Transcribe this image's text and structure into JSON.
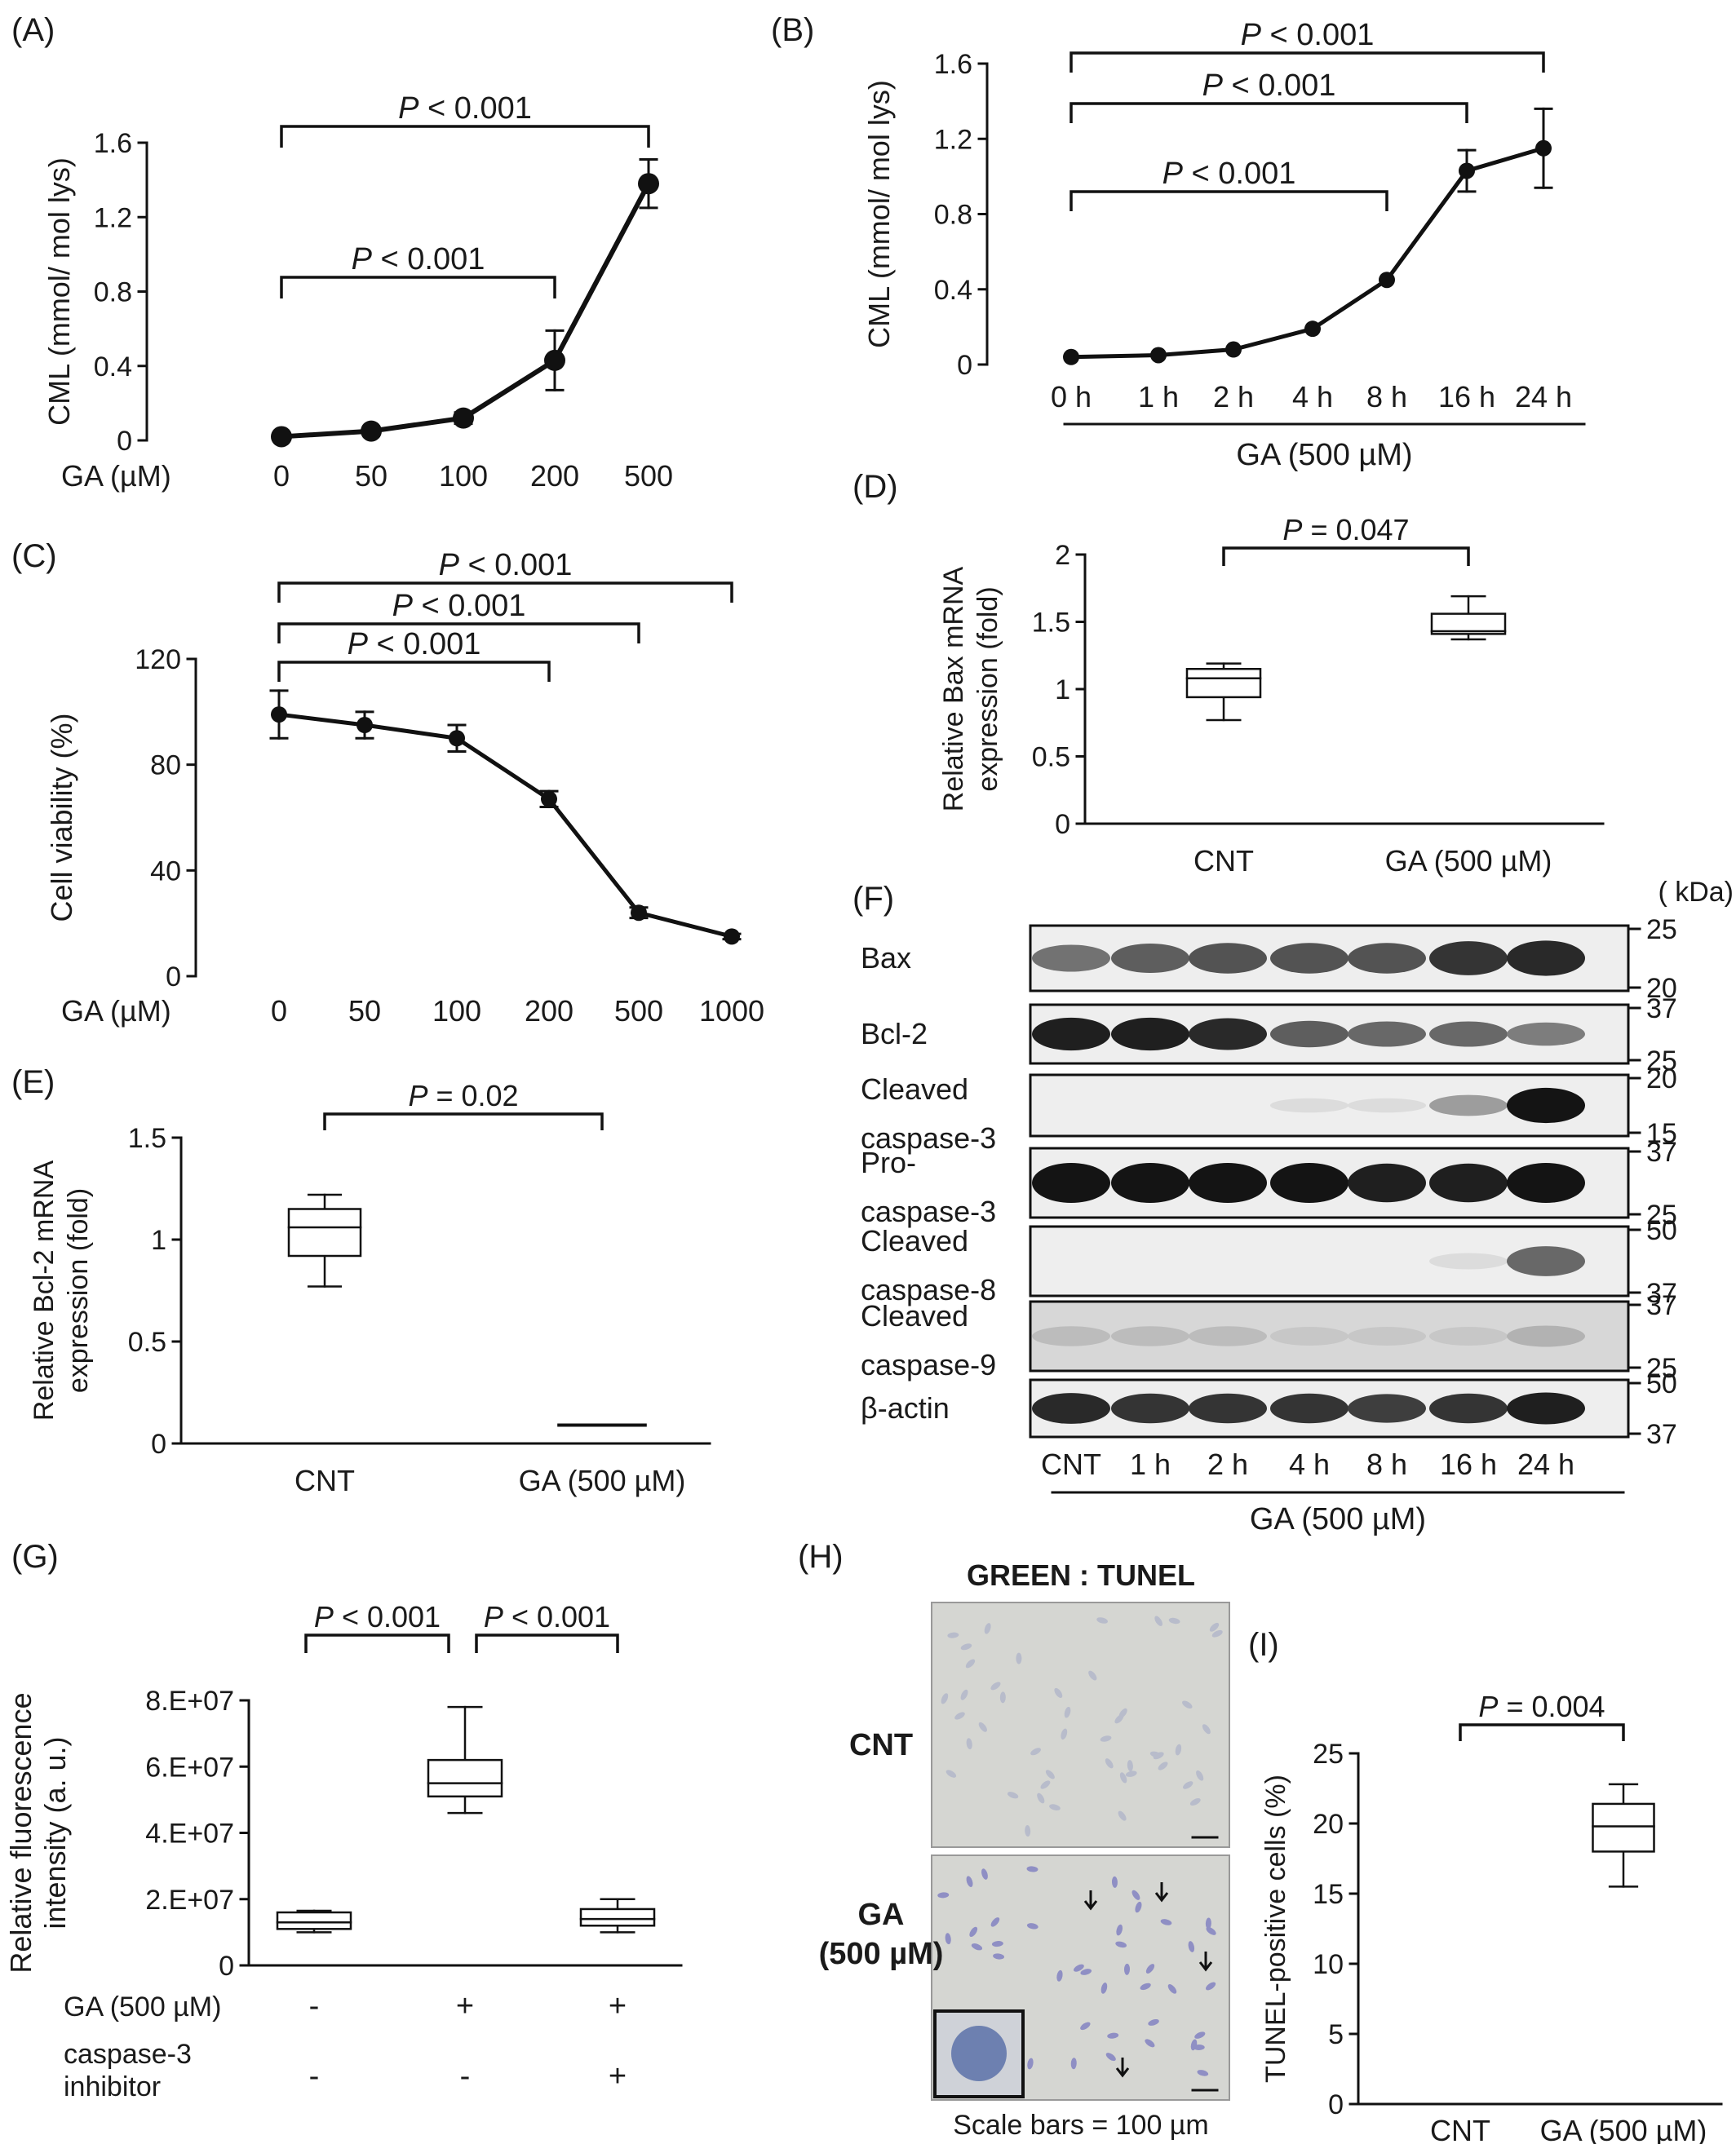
{
  "panels": {
    "A": {
      "letter": "(A)",
      "chart_data": {
        "type": "line",
        "ylabel": "CML (mmol/ mol lys)",
        "xprefix": "GA (µM)",
        "categories": [
          "0",
          "50",
          "100",
          "200",
          "500"
        ],
        "values": [
          0.02,
          0.05,
          0.12,
          0.43,
          1.38
        ],
        "errors": [
          0.02,
          0.02,
          0.03,
          0.16,
          0.13
        ],
        "ylim": [
          0,
          1.6
        ],
        "yticks": [
          0,
          0.4,
          0.8,
          1.2,
          1.6
        ],
        "ytick_labels": [
          "0",
          "0.4",
          "0.8",
          "1.2",
          "1.6"
        ],
        "brackets": [
          {
            "from": 0,
            "to": 4,
            "p": "< 0.001"
          },
          {
            "from": 0,
            "to": 3,
            "p": "< 0.001"
          }
        ]
      }
    },
    "B": {
      "letter": "(B)",
      "chart_data": {
        "type": "line",
        "ylabel": "CML (mmol/ mol lys)",
        "group_label": "GA (500 µM)",
        "categories": [
          "0 h",
          "1 h",
          "2 h",
          "4 h",
          "8 h",
          "16 h",
          "24 h"
        ],
        "values": [
          0.04,
          0.05,
          0.08,
          0.19,
          0.45,
          1.03,
          1.15
        ],
        "errors": [
          0.0,
          0.0,
          0.0,
          0.0,
          0.0,
          0.11,
          0.21
        ],
        "ylim": [
          0,
          1.6
        ],
        "yticks": [
          0,
          0.4,
          0.8,
          1.2,
          1.6
        ],
        "ytick_labels": [
          "0",
          "0.4",
          "0.8",
          "1.2",
          "1.6"
        ],
        "brackets": [
          {
            "from": 0,
            "to": 6,
            "p": "< 0.001"
          },
          {
            "from": 0,
            "to": 5,
            "p": "< 0.001"
          },
          {
            "from": 0,
            "to": 4,
            "p": "< 0.001"
          }
        ]
      }
    },
    "C": {
      "letter": "(C)",
      "chart_data": {
        "type": "line",
        "ylabel": "Cell viability (%)",
        "xprefix": "GA (µM)",
        "categories": [
          "0",
          "50",
          "100",
          "200",
          "500",
          "1000"
        ],
        "values": [
          99,
          95,
          90,
          67,
          24,
          15
        ],
        "errors": [
          9,
          5,
          5,
          3,
          2,
          1
        ],
        "ylim": [
          0,
          120
        ],
        "yticks": [
          0,
          40,
          80,
          120
        ],
        "ytick_labels": [
          "0",
          "40",
          "80",
          "120"
        ],
        "brackets": [
          {
            "from": 0,
            "to": 5,
            "p": "< 0.001"
          },
          {
            "from": 0,
            "to": 4,
            "p": "< 0.001"
          },
          {
            "from": 0,
            "to": 3,
            "p": "< 0.001"
          }
        ]
      }
    },
    "D": {
      "letter": "(D)",
      "chart_data": {
        "type": "box",
        "ylabel": [
          "Relative  Bax mRNA",
          "expression (fold)"
        ],
        "categories": [
          "CNT",
          "GA (500 µM)"
        ],
        "boxes": [
          {
            "min": 0.77,
            "q1": 0.94,
            "median": 1.08,
            "q3": 1.15,
            "max": 1.19
          },
          {
            "min": 1.37,
            "q1": 1.41,
            "median": 1.43,
            "q3": 1.56,
            "max": 1.69
          }
        ],
        "ylim": [
          0,
          2
        ],
        "yticks": [
          0,
          0.5,
          1,
          1.5,
          2
        ],
        "ytick_labels": [
          "0",
          "0.5",
          "1",
          "1.5",
          "2"
        ],
        "brackets": [
          {
            "from": 0,
            "to": 1,
            "p": "= 0.047"
          }
        ]
      }
    },
    "E": {
      "letter": "(E)",
      "chart_data": {
        "type": "box",
        "ylabel": [
          "Relative  Bcl-2 mRNA",
          "expression (fold)"
        ],
        "categories": [
          "CNT",
          "GA (500 µM)"
        ],
        "boxes": [
          {
            "min": 0.77,
            "q1": 0.92,
            "median": 1.06,
            "q3": 1.15,
            "max": 1.22
          },
          {
            "min": 0.09,
            "q1": 0.09,
            "median": 0.09,
            "q3": 0.09,
            "max": 0.09
          }
        ],
        "ylim": [
          0,
          1.5
        ],
        "yticks": [
          0,
          0.5,
          1,
          1.5
        ],
        "ytick_labels": [
          "0",
          "0.5",
          "1",
          "1.5"
        ],
        "brackets": [
          {
            "from": 0,
            "to": 1,
            "p": "= 0.02"
          }
        ]
      }
    },
    "F": {
      "letter": "(F)",
      "kda_label": "( kDa)",
      "rows": [
        {
          "label": [
            "Bax"
          ],
          "markers": [
            "25",
            "20"
          ]
        },
        {
          "label": [
            "Bcl-2"
          ],
          "markers": [
            "37",
            "25"
          ]
        },
        {
          "label": [
            "Cleaved",
            "caspase-3"
          ],
          "markers": [
            "20",
            "15"
          ]
        },
        {
          "label": [
            "Pro-",
            "caspase-3"
          ],
          "markers": [
            "37",
            "25"
          ]
        },
        {
          "label": [
            "Cleaved",
            "caspase-8"
          ],
          "markers": [
            "50",
            "37"
          ]
        },
        {
          "label": [
            "Cleaved",
            "caspase-9"
          ],
          "markers": [
            "37",
            "25"
          ]
        },
        {
          "label": [
            "β-actin"
          ],
          "markers": [
            "50",
            "37"
          ]
        }
      ],
      "lanes": [
        "CNT",
        "1 h",
        "2 h",
        "4 h",
        "8 h",
        "16 h",
        "24 h"
      ],
      "group_label": "GA (500 µM)"
    },
    "G": {
      "letter": "(G)",
      "chart_data": {
        "type": "box",
        "ylabel": [
          "Relative fluorescence",
          "intensity (a. u.)"
        ],
        "boxes": [
          {
            "min": 10000000.0,
            "q1": 11000000.0,
            "median": 13000000.0,
            "q3": 16000000.0,
            "max": 16500000.0
          },
          {
            "min": 46000000.0,
            "q1": 51000000.0,
            "median": 55000000.0,
            "q3": 62000000.0,
            "max": 78000000.0
          },
          {
            "min": 10000000.0,
            "q1": 12000000.0,
            "median": 14000000.0,
            "q3": 17000000.0,
            "max": 20000000.0
          }
        ],
        "ylim": [
          0,
          80000000.0
        ],
        "yticks": [
          0,
          20000000.0,
          40000000.0,
          60000000.0,
          80000000.0
        ],
        "ytick_labels": [
          "0",
          "2.E+07",
          "4.E+07",
          "6.E+07",
          "8.E+07"
        ],
        "conditions": [
          {
            "label": [
              "GA (500 µM)"
            ],
            "values": [
              "-",
              "+",
              "+"
            ]
          },
          {
            "label": [
              "caspase-3",
              "inhibitor"
            ],
            "values": [
              "-",
              "-",
              "+"
            ]
          }
        ],
        "brackets": [
          {
            "from": 0,
            "to": 1,
            "p": "< 0.001"
          },
          {
            "from": 1,
            "to": 2,
            "p": "< 0.001"
          }
        ]
      }
    },
    "H": {
      "letter": "(H)",
      "stain_label": "GREEN  : TUNEL",
      "row_labels": [
        [
          "CNT"
        ],
        [
          "GA",
          "(500 µM)"
        ]
      ],
      "scale_caption": "Scale bars = 100 µm"
    },
    "I": {
      "letter": "(I)",
      "chart_data": {
        "type": "box",
        "ylabel": [
          "TUNEL-positive cells (%)"
        ],
        "categories": [
          "CNT",
          "GA (500 µM)"
        ],
        "boxes": [
          null,
          {
            "min": 15.5,
            "q1": 18.0,
            "median": 19.8,
            "q3": 21.4,
            "max": 22.8
          }
        ],
        "ylim": [
          0,
          25
        ],
        "yticks": [
          0,
          5,
          10,
          15,
          20,
          25
        ],
        "ytick_labels": [
          "0",
          "5",
          "10",
          "15",
          "20",
          "25"
        ],
        "brackets": [
          {
            "from": 0,
            "to": 1,
            "p": "= 0.004"
          }
        ]
      }
    }
  },
  "p_symbol": "P"
}
